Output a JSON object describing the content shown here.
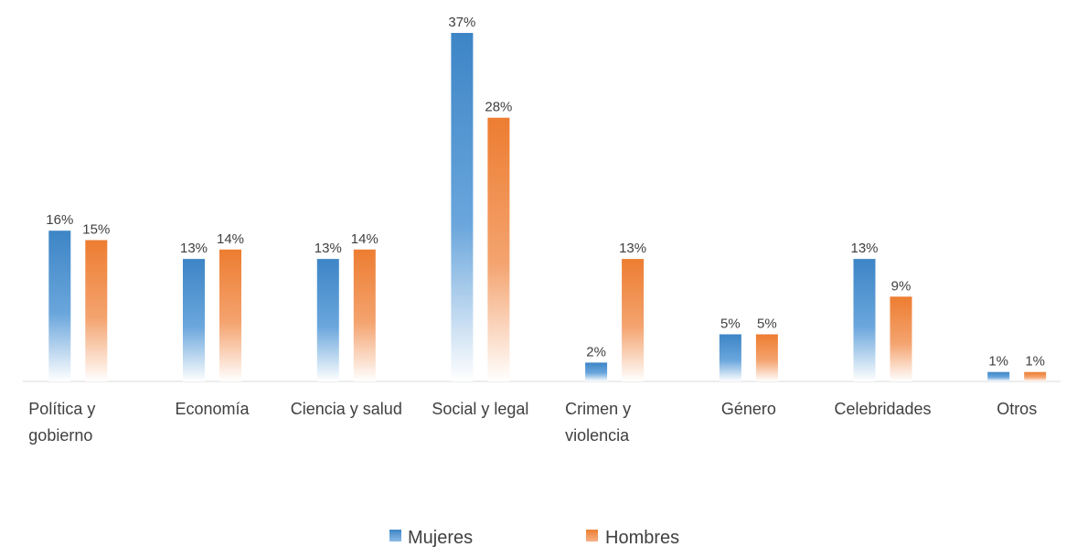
{
  "chart_data": {
    "type": "bar",
    "categories": [
      [
        "Política y",
        "gobierno"
      ],
      [
        "Economía"
      ],
      [
        "Ciencia y salud"
      ],
      [
        "Social y legal"
      ],
      [
        "Crimen y",
        "violencia"
      ],
      [
        "Género"
      ],
      [
        "Celebridades"
      ],
      [
        "Otros"
      ]
    ],
    "series": [
      {
        "name": "Mujeres",
        "color": "#3d85c6",
        "values": [
          16,
          13,
          13,
          37,
          2,
          5,
          13,
          1
        ],
        "labels": [
          "16%",
          "13%",
          "13%",
          "37%",
          "2%",
          "5%",
          "13%",
          "1%"
        ]
      },
      {
        "name": "Hombres",
        "color": "#ed7d31",
        "values": [
          15,
          14,
          14,
          28,
          13,
          5,
          9,
          1
        ],
        "labels": [
          "15%",
          "14%",
          "14%",
          "28%",
          "13%",
          "5%",
          "9%",
          "1%"
        ]
      }
    ],
    "value_unit": "%",
    "ylim": [
      0,
      37
    ],
    "grid": false,
    "legend_position": "bottom"
  }
}
